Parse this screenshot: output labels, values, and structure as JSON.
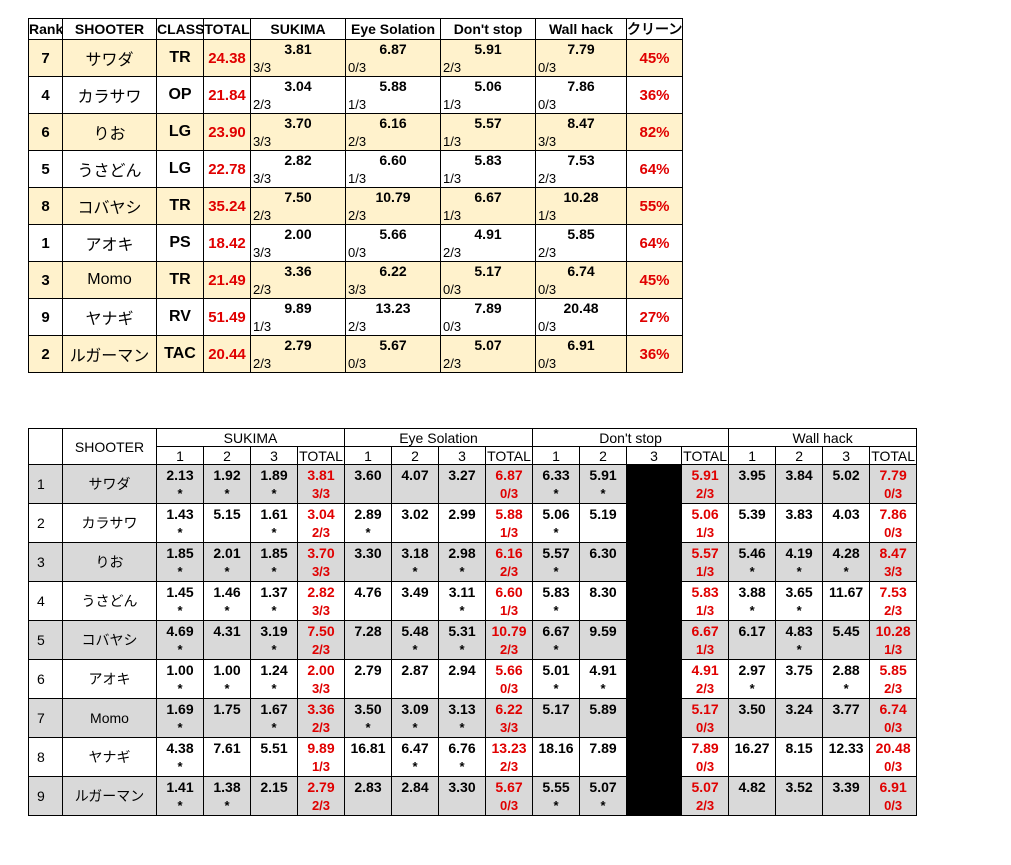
{
  "ranking": {
    "headers": [
      "Rank",
      "SHOOTER",
      "CLASS",
      "TOTAL",
      "SUKIMA",
      "Eye Solation",
      "Don't stop",
      "Wall hack",
      "クリーン"
    ],
    "rows": [
      {
        "rank": "7",
        "shooter": "サワダ",
        "class": "TR",
        "total": "24.38",
        "courses": [
          [
            "3.81",
            "3/3"
          ],
          [
            "6.87",
            "0/3"
          ],
          [
            "5.91",
            "2/3"
          ],
          [
            "7.79",
            "0/3"
          ]
        ],
        "clean": "45%"
      },
      {
        "rank": "4",
        "shooter": "カラサワ",
        "class": "OP",
        "total": "21.84",
        "courses": [
          [
            "3.04",
            "2/3"
          ],
          [
            "5.88",
            "1/3"
          ],
          [
            "5.06",
            "1/3"
          ],
          [
            "7.86",
            "0/3"
          ]
        ],
        "clean": "36%"
      },
      {
        "rank": "6",
        "shooter": "りお",
        "class": "LG",
        "total": "23.90",
        "courses": [
          [
            "3.70",
            "3/3"
          ],
          [
            "6.16",
            "2/3"
          ],
          [
            "5.57",
            "1/3"
          ],
          [
            "8.47",
            "3/3"
          ]
        ],
        "clean": "82%"
      },
      {
        "rank": "5",
        "shooter": "うさどん",
        "class": "LG",
        "total": "22.78",
        "courses": [
          [
            "2.82",
            "3/3"
          ],
          [
            "6.60",
            "1/3"
          ],
          [
            "5.83",
            "1/3"
          ],
          [
            "7.53",
            "2/3"
          ]
        ],
        "clean": "64%"
      },
      {
        "rank": "8",
        "shooter": "コバヤシ",
        "class": "TR",
        "total": "35.24",
        "courses": [
          [
            "7.50",
            "2/3"
          ],
          [
            "10.79",
            "2/3"
          ],
          [
            "6.67",
            "1/3"
          ],
          [
            "10.28",
            "1/3"
          ]
        ],
        "clean": "55%"
      },
      {
        "rank": "1",
        "shooter": "アオキ",
        "class": "PS",
        "total": "18.42",
        "courses": [
          [
            "2.00",
            "3/3"
          ],
          [
            "5.66",
            "0/3"
          ],
          [
            "4.91",
            "2/3"
          ],
          [
            "5.85",
            "2/3"
          ]
        ],
        "clean": "64%"
      },
      {
        "rank": "3",
        "shooter": "Momo",
        "class": "TR",
        "total": "21.49",
        "courses": [
          [
            "3.36",
            "2/3"
          ],
          [
            "6.22",
            "3/3"
          ],
          [
            "5.17",
            "0/3"
          ],
          [
            "6.74",
            "0/3"
          ]
        ],
        "clean": "45%"
      },
      {
        "rank": "9",
        "shooter": "ヤナギ",
        "class": "RV",
        "total": "51.49",
        "courses": [
          [
            "9.89",
            "1/3"
          ],
          [
            "13.23",
            "2/3"
          ],
          [
            "7.89",
            "0/3"
          ],
          [
            "20.48",
            "0/3"
          ]
        ],
        "clean": "27%"
      },
      {
        "rank": "2",
        "shooter": "ルガーマン",
        "class": "TAC",
        "total": "20.44",
        "courses": [
          [
            "2.79",
            "2/3"
          ],
          [
            "5.67",
            "0/3"
          ],
          [
            "5.07",
            "2/3"
          ],
          [
            "6.91",
            "0/3"
          ]
        ],
        "clean": "36%"
      }
    ]
  },
  "detail": {
    "shooter_header": "SHOOTER",
    "courses": [
      {
        "name": "SUKIMA",
        "columns": [
          "1",
          "2",
          "3",
          "TOTAL"
        ]
      },
      {
        "name": "Eye Solation",
        "columns": [
          "1",
          "2",
          "3",
          "TOTAL"
        ]
      },
      {
        "name": "Don't stop",
        "columns": [
          "1",
          "2",
          "3",
          "TOTAL"
        ]
      },
      {
        "name": "Wall hack",
        "columns": [
          "1",
          "2",
          "3",
          "TOTAL"
        ]
      }
    ],
    "rows": [
      {
        "no": "1",
        "shooter": "サワダ",
        "courses": [
          {
            "times": [
              "2.13",
              "1.92",
              "1.89"
            ],
            "total": "3.81",
            "marks": [
              "*",
              "*",
              "*"
            ],
            "clears": "3/3"
          },
          {
            "times": [
              "3.60",
              "4.07",
              "3.27"
            ],
            "total": "6.87",
            "marks": [
              null,
              null,
              null
            ],
            "clears": "0/3"
          },
          {
            "times": [
              "6.33",
              "5.91"
            ],
            "total": "5.91",
            "marks": [
              "*",
              "*"
            ],
            "clears": "2/3"
          },
          {
            "times": [
              "3.95",
              "3.84",
              "5.02"
            ],
            "total": "7.79",
            "marks": [
              null,
              null,
              null
            ],
            "clears": "0/3"
          }
        ]
      },
      {
        "no": "2",
        "shooter": "カラサワ",
        "courses": [
          {
            "times": [
              "1.43",
              "5.15",
              "1.61"
            ],
            "total": "3.04",
            "marks": [
              "*",
              null,
              "*"
            ],
            "clears": "2/3"
          },
          {
            "times": [
              "2.89",
              "3.02",
              "2.99"
            ],
            "total": "5.88",
            "marks": [
              "*",
              null,
              null
            ],
            "clears": "1/3"
          },
          {
            "times": [
              "5.06",
              "5.19"
            ],
            "total": "5.06",
            "marks": [
              "*",
              null
            ],
            "clears": "1/3"
          },
          {
            "times": [
              "5.39",
              "3.83",
              "4.03"
            ],
            "total": "7.86",
            "marks": [
              null,
              null,
              null
            ],
            "clears": "0/3"
          }
        ]
      },
      {
        "no": "3",
        "shooter": "りお",
        "courses": [
          {
            "times": [
              "1.85",
              "2.01",
              "1.85"
            ],
            "total": "3.70",
            "marks": [
              "*",
              "*",
              "*"
            ],
            "clears": "3/3"
          },
          {
            "times": [
              "3.30",
              "3.18",
              "2.98"
            ],
            "total": "6.16",
            "marks": [
              null,
              "*",
              "*"
            ],
            "clears": "2/3"
          },
          {
            "times": [
              "5.57",
              "6.30"
            ],
            "total": "5.57",
            "marks": [
              "*",
              null
            ],
            "clears": "1/3"
          },
          {
            "times": [
              "5.46",
              "4.19",
              "4.28"
            ],
            "total": "8.47",
            "marks": [
              "*",
              "*",
              "*"
            ],
            "clears": "3/3"
          }
        ]
      },
      {
        "no": "4",
        "shooter": "うさどん",
        "courses": [
          {
            "times": [
              "1.45",
              "1.46",
              "1.37"
            ],
            "total": "2.82",
            "marks": [
              "*",
              "*",
              "*"
            ],
            "clears": "3/3"
          },
          {
            "times": [
              "4.76",
              "3.49",
              "3.11"
            ],
            "total": "6.60",
            "marks": [
              null,
              null,
              "*"
            ],
            "clears": "1/3"
          },
          {
            "times": [
              "5.83",
              "8.30"
            ],
            "total": "5.83",
            "marks": [
              "*",
              null
            ],
            "clears": "1/3"
          },
          {
            "times": [
              "3.88",
              "3.65",
              "11.67"
            ],
            "total": "7.53",
            "marks": [
              "*",
              "*",
              null
            ],
            "clears": "2/3"
          }
        ]
      },
      {
        "no": "5",
        "shooter": "コバヤシ",
        "courses": [
          {
            "times": [
              "4.69",
              "4.31",
              "3.19"
            ],
            "total": "7.50",
            "marks": [
              "*",
              null,
              "*"
            ],
            "clears": "2/3"
          },
          {
            "times": [
              "7.28",
              "5.48",
              "5.31"
            ],
            "total": "10.79",
            "marks": [
              null,
              "*",
              "*"
            ],
            "clears": "2/3"
          },
          {
            "times": [
              "6.67",
              "9.59"
            ],
            "total": "6.67",
            "marks": [
              "*",
              null
            ],
            "clears": "1/3"
          },
          {
            "times": [
              "6.17",
              "4.83",
              "5.45"
            ],
            "total": "10.28",
            "marks": [
              null,
              "*",
              null
            ],
            "clears": "1/3"
          }
        ]
      },
      {
        "no": "6",
        "shooter": "アオキ",
        "courses": [
          {
            "times": [
              "1.00",
              "1.00",
              "1.24"
            ],
            "total": "2.00",
            "marks": [
              "*",
              "*",
              "*"
            ],
            "clears": "3/3"
          },
          {
            "times": [
              "2.79",
              "2.87",
              "2.94"
            ],
            "total": "5.66",
            "marks": [
              null,
              null,
              null
            ],
            "clears": "0/3"
          },
          {
            "times": [
              "5.01",
              "4.91"
            ],
            "total": "4.91",
            "marks": [
              "*",
              "*"
            ],
            "clears": "2/3"
          },
          {
            "times": [
              "2.97",
              "3.75",
              "2.88"
            ],
            "total": "5.85",
            "marks": [
              "*",
              null,
              "*"
            ],
            "clears": "2/3"
          }
        ]
      },
      {
        "no": "7",
        "shooter": "Momo",
        "courses": [
          {
            "times": [
              "1.69",
              "1.75",
              "1.67"
            ],
            "total": "3.36",
            "marks": [
              "*",
              null,
              "*"
            ],
            "clears": "2/3"
          },
          {
            "times": [
              "3.50",
              "3.09",
              "3.13"
            ],
            "total": "6.22",
            "marks": [
              "*",
              "*",
              "*"
            ],
            "clears": "3/3"
          },
          {
            "times": [
              "5.17",
              "5.89"
            ],
            "total": "5.17",
            "marks": [
              null,
              null
            ],
            "clears": "0/3"
          },
          {
            "times": [
              "3.50",
              "3.24",
              "3.77"
            ],
            "total": "6.74",
            "marks": [
              null,
              null,
              null
            ],
            "clears": "0/3"
          }
        ]
      },
      {
        "no": "8",
        "shooter": "ヤナギ",
        "courses": [
          {
            "times": [
              "4.38",
              "7.61",
              "5.51"
            ],
            "total": "9.89",
            "marks": [
              "*",
              null,
              null
            ],
            "clears": "1/3"
          },
          {
            "times": [
              "16.81",
              "6.47",
              "6.76"
            ],
            "total": "13.23",
            "marks": [
              null,
              "*",
              "*"
            ],
            "clears": "2/3"
          },
          {
            "times": [
              "18.16",
              "7.89"
            ],
            "total": "7.89",
            "marks": [
              null,
              null
            ],
            "clears": "0/3"
          },
          {
            "times": [
              "16.27",
              "8.15",
              "12.33"
            ],
            "total": "20.48",
            "marks": [
              null,
              null,
              null
            ],
            "clears": "0/3"
          }
        ]
      },
      {
        "no": "9",
        "shooter": "ルガーマン",
        "courses": [
          {
            "times": [
              "1.41",
              "1.38",
              "2.15"
            ],
            "total": "2.79",
            "marks": [
              "*",
              "*",
              null
            ],
            "clears": "2/3"
          },
          {
            "times": [
              "2.83",
              "2.84",
              "3.30"
            ],
            "total": "5.67",
            "marks": [
              null,
              null,
              null
            ],
            "clears": "0/3"
          },
          {
            "times": [
              "5.55",
              "5.07"
            ],
            "total": "5.07",
            "marks": [
              "*",
              "*"
            ],
            "clears": "2/3"
          },
          {
            "times": [
              "4.82",
              "3.52",
              "3.39"
            ],
            "total": "6.91",
            "marks": [
              null,
              null,
              null
            ],
            "clears": "0/3"
          }
        ]
      }
    ]
  }
}
